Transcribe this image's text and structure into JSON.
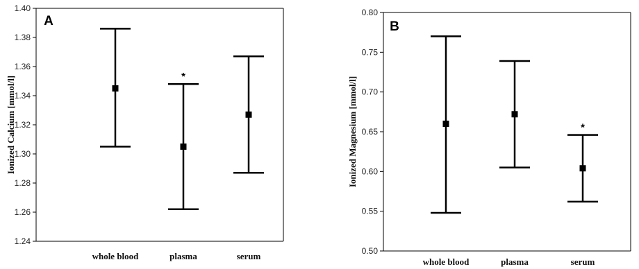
{
  "chart_data": [
    {
      "type": "errorbar",
      "panel_label": "A",
      "ylabel": "Ionized Calcium [mmol/l]",
      "ylim": [
        1.24,
        1.4
      ],
      "yticks": [
        "1.24",
        "1.26",
        "1.28",
        "1.30",
        "1.32",
        "1.34",
        "1.36",
        "1.38",
        "1.40"
      ],
      "categories": [
        "whole blood",
        "plasma",
        "serum"
      ],
      "means": [
        1.345,
        1.305,
        1.327
      ],
      "lower": [
        1.305,
        1.262,
        1.287
      ],
      "upper": [
        1.386,
        1.348,
        1.367
      ],
      "annotations": [
        "",
        "*",
        ""
      ],
      "grid": false
    },
    {
      "type": "errorbar",
      "panel_label": "B",
      "ylabel": "Ionized Magnesium [mmol/l]",
      "ylim": [
        0.5,
        0.8
      ],
      "yticks": [
        "0.50",
        "0.55",
        "0.60",
        "0.65",
        "0.70",
        "0.75",
        "0.80"
      ],
      "categories": [
        "whole blood",
        "plasma",
        "serum"
      ],
      "means": [
        0.66,
        0.672,
        0.604
      ],
      "lower": [
        0.548,
        0.605,
        0.562
      ],
      "upper": [
        0.77,
        0.739,
        0.646
      ],
      "annotations": [
        "",
        "",
        "*"
      ],
      "grid": false
    }
  ]
}
